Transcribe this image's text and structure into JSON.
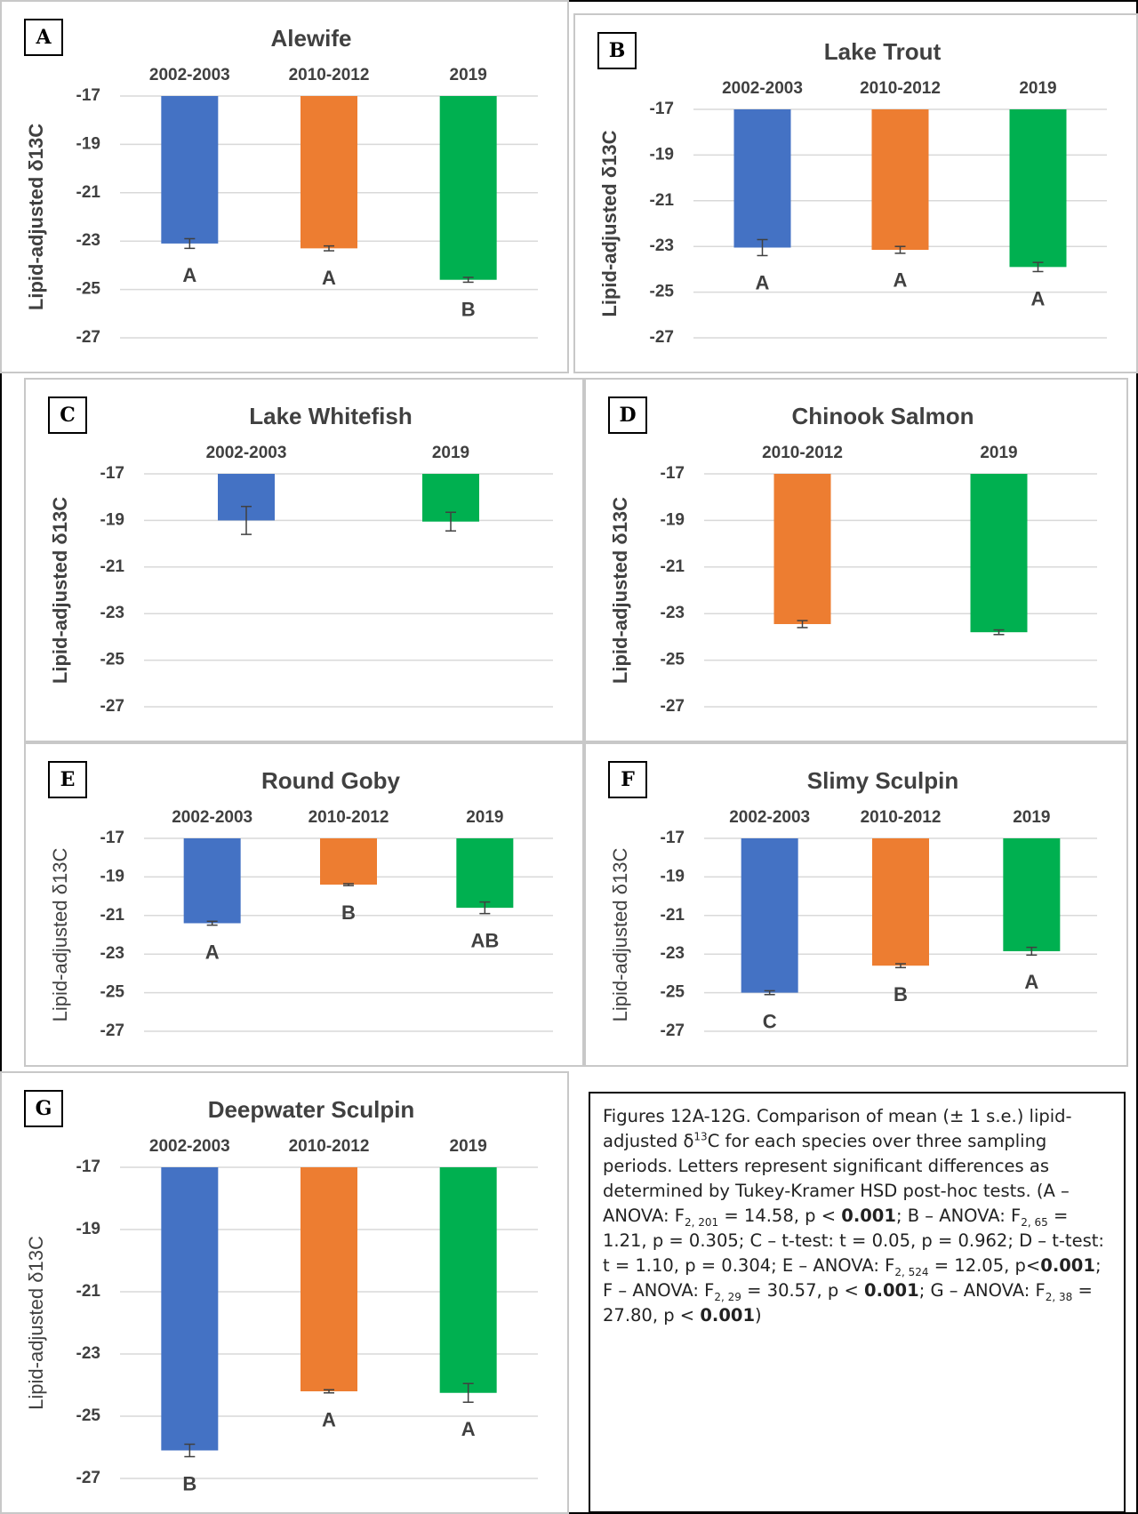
{
  "chart_data": [
    {
      "type": "bar",
      "panel": "A",
      "title": "Alewife",
      "ylabel": "Lipid-adjusted δ13C",
      "ylabel_weight": "bold",
      "categories": [
        "2002-2003",
        "2010-2012",
        "2019"
      ],
      "values": [
        -23.1,
        -23.3,
        -24.6
      ],
      "errors": [
        0.2,
        0.1,
        0.1
      ],
      "colors": [
        "#4472c4",
        "#ed7d31",
        "#00b050"
      ],
      "letters": [
        "A",
        "A",
        "B"
      ],
      "ylim": [
        -27,
        -17
      ],
      "yticks": [
        -17,
        -19,
        -21,
        -23,
        -25,
        -27
      ],
      "grid": true
    },
    {
      "type": "bar",
      "panel": "B",
      "title": "Lake Trout",
      "ylabel": "Lipid-adjusted δ13C",
      "ylabel_weight": "bold",
      "categories": [
        "2002-2003",
        "2010-2012",
        "2019"
      ],
      "values": [
        -23.05,
        -23.15,
        -23.9
      ],
      "errors": [
        0.35,
        0.15,
        0.2
      ],
      "colors": [
        "#4472c4",
        "#ed7d31",
        "#00b050"
      ],
      "letters": [
        "A",
        "A",
        "A"
      ],
      "ylim": [
        -27,
        -17
      ],
      "yticks": [
        -17,
        -19,
        -21,
        -23,
        -25,
        -27
      ],
      "grid": true
    },
    {
      "type": "bar",
      "panel": "C",
      "title": "Lake Whitefish",
      "ylabel": "Lipid-adjusted δ13C",
      "ylabel_weight": "bold",
      "categories": [
        "2002-2003",
        "2019"
      ],
      "values": [
        -19.0,
        -19.05
      ],
      "errors": [
        0.6,
        0.4
      ],
      "colors": [
        "#4472c4",
        "#00b050"
      ],
      "ylim": [
        -27,
        -17
      ],
      "yticks": [
        -17,
        -19,
        -21,
        -23,
        -25,
        -27
      ],
      "grid": true
    },
    {
      "type": "bar",
      "panel": "D",
      "title": "Chinook Salmon",
      "ylabel": "Lipid-adjusted δ13C",
      "ylabel_weight": "bold",
      "categories": [
        "2010-2012",
        "2019"
      ],
      "values": [
        -23.45,
        -23.8
      ],
      "errors": [
        0.15,
        0.1
      ],
      "colors": [
        "#ed7d31",
        "#00b050"
      ],
      "ylim": [
        -27,
        -17
      ],
      "yticks": [
        -17,
        -19,
        -21,
        -23,
        -25,
        -27
      ],
      "grid": true
    },
    {
      "type": "bar",
      "panel": "E",
      "title": "Round Goby",
      "ylabel": "Lipid-adjusted δ13C",
      "ylabel_weight": "normal",
      "categories": [
        "2002-2003",
        "2010-2012",
        "2019"
      ],
      "values": [
        -21.4,
        -19.4,
        -20.6
      ],
      "errors": [
        0.1,
        0.05,
        0.3
      ],
      "colors": [
        "#4472c4",
        "#ed7d31",
        "#00b050"
      ],
      "letters": [
        "A",
        "B",
        "AB"
      ],
      "ylim": [
        -27,
        -17
      ],
      "yticks": [
        -17,
        -19,
        -21,
        -23,
        -25,
        -27
      ],
      "grid": true
    },
    {
      "type": "bar",
      "panel": "F",
      "title": "Slimy Sculpin",
      "ylabel": "Lipid-adjusted δ13C",
      "ylabel_weight": "normal",
      "categories": [
        "2002-2003",
        "2010-2012",
        "2019"
      ],
      "values": [
        -25.0,
        -23.6,
        -22.85
      ],
      "errors": [
        0.1,
        0.1,
        0.2
      ],
      "colors": [
        "#4472c4",
        "#ed7d31",
        "#00b050"
      ],
      "letters": [
        "C",
        "B",
        "A"
      ],
      "ylim": [
        -27,
        -17
      ],
      "yticks": [
        -17,
        -19,
        -21,
        -23,
        -25,
        -27
      ],
      "grid": true
    },
    {
      "type": "bar",
      "panel": "G",
      "title": "Deepwater Sculpin",
      "ylabel": "Lipid-adjusted δ13C",
      "ylabel_weight": "normal",
      "categories": [
        "2002-2003",
        "2010-2012",
        "2019"
      ],
      "values": [
        -26.1,
        -24.2,
        -24.25
      ],
      "errors": [
        0.2,
        0.05,
        0.3
      ],
      "colors": [
        "#4472c4",
        "#ed7d31",
        "#00b050"
      ],
      "letters": [
        "B",
        "A",
        "A"
      ],
      "ylim": [
        -27,
        -17
      ],
      "yticks": [
        -17,
        -19,
        -21,
        -23,
        -25,
        -27
      ],
      "grid": true
    }
  ],
  "caption": [
    {
      "text": "Figures 12A-12G. Comparison of mean (± 1 s.e.) lipid-adjusted δ",
      "style": "normal"
    },
    {
      "text": "13",
      "style": "sup"
    },
    {
      "text": "C for each species over three sampling periods. Letters represent significant differences as determined by Tukey-Kramer HSD post-hoc tests. (A – ANOVA: F",
      "style": "normal"
    },
    {
      "text": "2, 201",
      "style": "sub"
    },
    {
      "text": " = 14.58, p < ",
      "style": "normal"
    },
    {
      "text": "0.001",
      "style": "bold"
    },
    {
      "text": "; B – ANOVA: F",
      "style": "normal"
    },
    {
      "text": "2, 65",
      "style": "sub"
    },
    {
      "text": " = 1.21, p = 0.305; C – t-test: t = 0.05, p = 0.962; D – t-test: t = 1.10, p = 0.304; E – ANOVA: F",
      "style": "normal"
    },
    {
      "text": "2, 524",
      "style": "sub"
    },
    {
      "text": " = 12.05, p<",
      "style": "normal"
    },
    {
      "text": "0.001",
      "style": "bold"
    },
    {
      "text": "; F – ANOVA: F",
      "style": "normal"
    },
    {
      "text": "2, 29",
      "style": "sub"
    },
    {
      "text": " = 30.57, p < ",
      "style": "normal"
    },
    {
      "text": "0.001",
      "style": "bold"
    },
    {
      "text": "; G – ANOVA: F",
      "style": "normal"
    },
    {
      "text": "2, 38",
      "style": "sub"
    },
    {
      "text": " = 27.80, p < ",
      "style": "normal"
    },
    {
      "text": "0.001",
      "style": "bold"
    },
    {
      "text": ")",
      "style": "normal"
    }
  ]
}
